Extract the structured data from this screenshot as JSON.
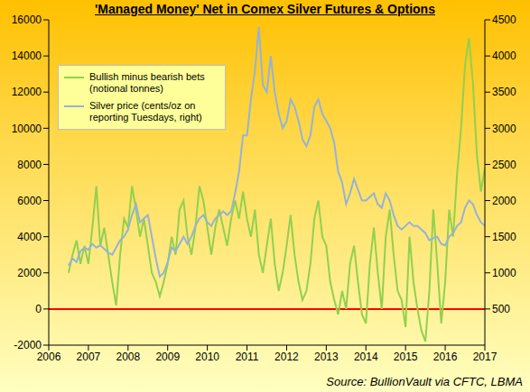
{
  "chart_data": {
    "type": "line",
    "title": "'Managed Money' Net in Comex Silver Futures & Options",
    "source": "Source: BullionVault via CFTC, LBMA",
    "x": [
      2006.5,
      2006.6,
      2006.7,
      2006.8,
      2006.9,
      2007.0,
      2007.1,
      2007.2,
      2007.3,
      2007.4,
      2007.5,
      2007.6,
      2007.7,
      2007.8,
      2007.9,
      2008.0,
      2008.1,
      2008.2,
      2008.3,
      2008.4,
      2008.5,
      2008.6,
      2008.7,
      2008.8,
      2008.9,
      2009.0,
      2009.1,
      2009.2,
      2009.3,
      2009.4,
      2009.5,
      2009.6,
      2009.7,
      2009.8,
      2009.9,
      2010.0,
      2010.1,
      2010.2,
      2010.3,
      2010.4,
      2010.5,
      2010.6,
      2010.7,
      2010.8,
      2010.9,
      2011.0,
      2011.1,
      2011.2,
      2011.3,
      2011.4,
      2011.5,
      2011.6,
      2011.7,
      2011.8,
      2011.9,
      2012.0,
      2012.1,
      2012.2,
      2012.3,
      2012.4,
      2012.5,
      2012.6,
      2012.7,
      2012.8,
      2012.9,
      2013.0,
      2013.1,
      2013.2,
      2013.3,
      2013.4,
      2013.5,
      2013.6,
      2013.7,
      2013.8,
      2013.9,
      2014.0,
      2014.1,
      2014.2,
      2014.3,
      2014.4,
      2014.5,
      2014.6,
      2014.7,
      2014.8,
      2014.9,
      2015.0,
      2015.1,
      2015.2,
      2015.3,
      2015.4,
      2015.5,
      2015.6,
      2015.7,
      2015.8,
      2015.9,
      2016.0,
      2016.1,
      2016.2,
      2016.3,
      2016.4,
      2016.5,
      2016.6,
      2016.7,
      2016.8,
      2016.9,
      2017.0
    ],
    "series": [
      {
        "name": "Bullish minus bearish bets (notional tonnes)",
        "color": "#92d050",
        "values": [
          2000,
          3000,
          3800,
          2500,
          3500,
          2500,
          4500,
          6800,
          3500,
          4500,
          3000,
          1500,
          200,
          3000,
          5000,
          4500,
          6800,
          5500,
          4000,
          5000,
          3500,
          2000,
          1500,
          700,
          1500,
          2500,
          4000,
          3000,
          5500,
          6000,
          4000,
          3000,
          4500,
          6800,
          6000,
          4500,
          3000,
          4500,
          5500,
          4500,
          3500,
          5000,
          6000,
          5000,
          6500,
          5000,
          4000,
          5500,
          3000,
          2000,
          3500,
          5000,
          2500,
          1000,
          2000,
          3500,
          5200,
          3000,
          1500,
          500,
          1000,
          2500,
          5000,
          6000,
          4000,
          3500,
          1500,
          500,
          -300,
          1000,
          0,
          2500,
          3500,
          1500,
          -300,
          -800,
          2500,
          4500,
          2000,
          0,
          4000,
          5500,
          3000,
          1000,
          500,
          -1000,
          4000,
          1500,
          0,
          -1200,
          -1800,
          1000,
          5500,
          2500,
          -800,
          1500,
          5500,
          4000,
          7500,
          10000,
          13500,
          15000,
          12500,
          8500,
          6500,
          7800
        ]
      },
      {
        "name": "Silver price (cents/oz on reporting Tuesdays, right)",
        "color": "#95b3d7",
        "axis": "y2",
        "values": [
          1100,
          1200,
          1150,
          1300,
          1350,
          1320,
          1400,
          1350,
          1380,
          1330,
          1280,
          1250,
          1350,
          1450,
          1500,
          1600,
          1800,
          1950,
          1700,
          1750,
          1800,
          1500,
          1200,
          950,
          1000,
          1150,
          1350,
          1300,
          1400,
          1500,
          1400,
          1500,
          1650,
          1750,
          1800,
          1700,
          1650,
          1750,
          1800,
          1850,
          1800,
          1850,
          2100,
          2400,
          2900,
          2900,
          3400,
          3800,
          4400,
          3600,
          3500,
          4000,
          3500,
          3200,
          3000,
          3100,
          3400,
          3300,
          3100,
          2850,
          2750,
          2900,
          3300,
          3400,
          3200,
          3100,
          3000,
          2800,
          2400,
          2250,
          1950,
          2100,
          2300,
          2150,
          2000,
          2000,
          2050,
          2100,
          1950,
          1900,
          2100,
          2000,
          1800,
          1650,
          1600,
          1650,
          1700,
          1650,
          1650,
          1600,
          1550,
          1450,
          1480,
          1500,
          1400,
          1380,
          1500,
          1550,
          1650,
          1700,
          1900,
          2000,
          1950,
          1800,
          1700,
          1650
        ]
      }
    ],
    "xlim": [
      2006,
      2017
    ],
    "xticks": [
      2006,
      2007,
      2008,
      2009,
      2010,
      2011,
      2012,
      2013,
      2014,
      2015,
      2016,
      2017
    ],
    "ylim": [
      -2000,
      16000
    ],
    "yticks": [
      -2000,
      0,
      2000,
      4000,
      6000,
      8000,
      10000,
      12000,
      14000,
      16000
    ],
    "y2lim": [
      0,
      4500
    ],
    "y2ticks": [
      500,
      1000,
      1500,
      2000,
      2500,
      3000,
      3500,
      4000,
      4500
    ],
    "hlines": [
      {
        "y": 0,
        "color": "#ff0000"
      }
    ],
    "grid": false,
    "legend": "upper left"
  }
}
